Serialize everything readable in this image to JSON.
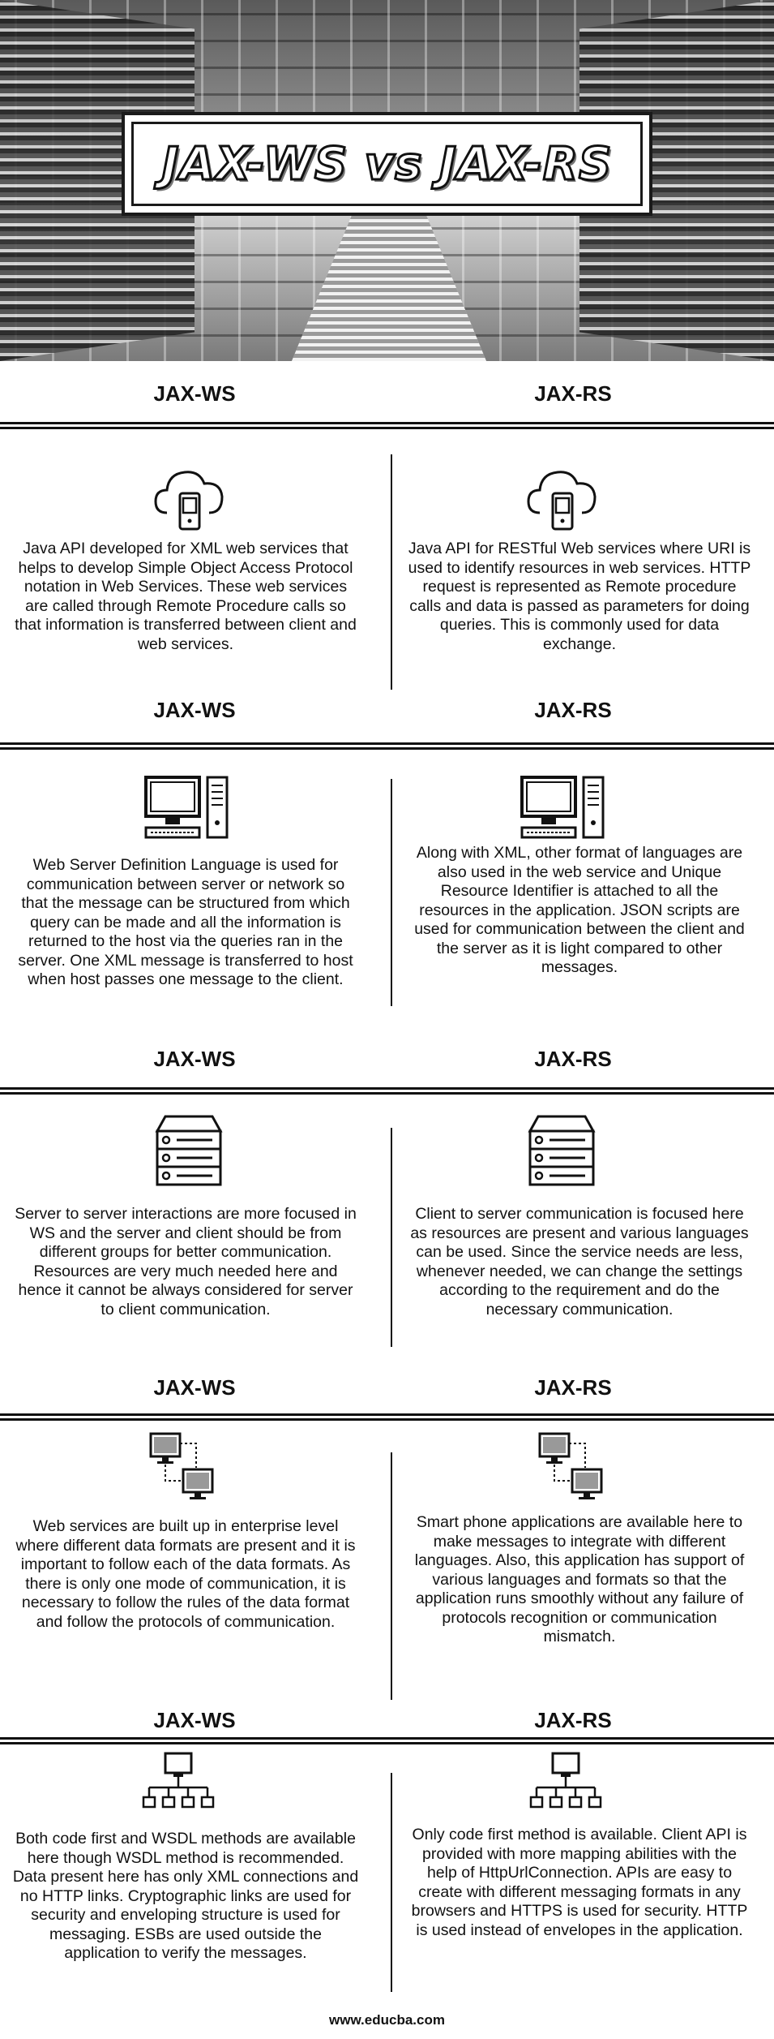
{
  "header": {
    "title": "JAX-WS vs JAX-RS"
  },
  "columns": {
    "left": "JAX-WS",
    "right": "JAX-RS"
  },
  "sections": [
    {
      "icon": "cloud-phone-icon",
      "left": "Java API developed for XML web services that helps to develop Simple Object Access Protocol notation in Web Services. These web services are called through Remote Procedure calls so that information is transferred between client and web services.",
      "right": "Java API for RESTful Web services where URI is used to identify resources in web services. HTTP request is represented as Remote procedure calls and data is passed as parameters for doing queries. This is commonly used for data exchange."
    },
    {
      "icon": "desktop-computer-icon",
      "left": "Web Server Definition Language is used for communication between server or network so that the message can be structured from which query can be made and all the information is returned to the host via the queries ran in the server. One XML message is transferred to host when host passes one message to the client.",
      "right": "Along with XML, other format of languages are also used in the web service and Unique Resource Identifier is attached to all the resources in the application. JSON scripts are used for communication between the client and the server as it is light compared to other messages."
    },
    {
      "icon": "server-stack-icon",
      "left": "Server to server interactions are more focused in WS and the server and client should be from different groups for better communication. Resources are very much needed here and hence it cannot be always considered for server to client communication.",
      "right": "Client to server communication is focused here as resources are present and various languages can be used. Since the service needs are less, whenever needed, we can change the settings according to the requirement and do the necessary communication."
    },
    {
      "icon": "connected-monitors-icon",
      "left": "Web services are built up in enterprise level where different data formats are present and it is important to follow each of the data formats. As there is only one mode of communication, it is necessary to follow the rules of the data format and follow the protocols of communication.",
      "right": "Smart phone applications are available here to make messages to integrate with different languages. Also, this application has support of various languages and formats so that the application runs smoothly without any failure of protocols recognition or communication mismatch."
    },
    {
      "icon": "network-hierarchy-icon",
      "left": "Both code first and WSDL methods are available here though WSDL method is recommended. Data present here has only XML connections and no HTTP links. Cryptographic links are used for security and enveloping structure is used for messaging. ESBs are used outside the application to verify the messages.",
      "right": "Only code first method is available. Client API is provided with more mapping abilities with the help of HttpUrlConnection. APIs are easy to create with different messaging formats in any browsers and HTTPS is used for security. HTTP is used instead of envelopes in the application."
    }
  ],
  "footer": {
    "url": "www.educba.com"
  }
}
